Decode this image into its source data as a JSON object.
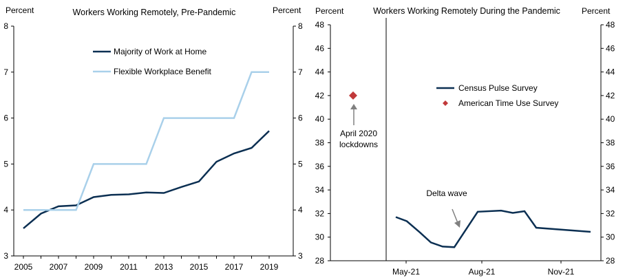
{
  "chart_data": [
    {
      "type": "line",
      "title": "Workers Working Remotely, Pre-Pandemic",
      "ylabel_left": "Percent",
      "ylabel_right": "Percent",
      "ylim": [
        3,
        8
      ],
      "yticks": [
        "3",
        "4",
        "5",
        "6",
        "7",
        "8"
      ],
      "xlim": [
        2005,
        2019
      ],
      "xticks": [
        "2005",
        "2007",
        "2009",
        "2011",
        "2013",
        "2015",
        "2017",
        "2019"
      ],
      "legend_position": "upper-left",
      "series": [
        {
          "name": "Majority of Work at Home",
          "color": "#0b2f52",
          "x": [
            2005,
            2006,
            2007,
            2008,
            2009,
            2010,
            2011,
            2012,
            2013,
            2014,
            2015,
            2016,
            2017,
            2018,
            2019
          ],
          "y": [
            3.6,
            3.92,
            4.08,
            4.1,
            4.28,
            4.33,
            4.34,
            4.38,
            4.37,
            4.5,
            4.62,
            5.05,
            5.23,
            5.35,
            5.72
          ]
        },
        {
          "name": "Flexible Workplace Benefit",
          "color": "#a9d0ea",
          "step": true,
          "x": [
            2005,
            2006,
            2007,
            2008,
            2009,
            2010,
            2011,
            2012,
            2013,
            2014,
            2015,
            2016,
            2017,
            2018,
            2019
          ],
          "y": [
            4,
            4,
            4,
            4,
            5,
            5,
            5,
            5,
            6,
            6,
            6,
            6,
            6,
            7,
            7
          ]
        }
      ]
    },
    {
      "type": "line",
      "title": "Workers Working Remotely During the Pandemic",
      "ylabel_left": "Percent",
      "ylabel_right": "Percent",
      "ylim": [
        28,
        48
      ],
      "yticks": [
        "28",
        "30",
        "32",
        "34",
        "36",
        "38",
        "40",
        "42",
        "44",
        "46",
        "48"
      ],
      "xticks": [
        "May-21",
        "Aug-21",
        "Nov-21"
      ],
      "legend_position": "center-right",
      "series": [
        {
          "name": "Census Pulse Survey",
          "color": "#0b2f52",
          "x": [
            "Apr-21",
            "May-21",
            "Jun-21",
            "Jul-21",
            "Jul-21",
            "Aug-21",
            "Sep-21",
            "Sep-21",
            "Oct-21",
            "Dec-21"
          ],
          "y": [
            31.7,
            31.35,
            29.55,
            29.2,
            29.15,
            32.15,
            32.25,
            32.05,
            32.2,
            30.45
          ]
        },
        {
          "name": "American Time Use Survey",
          "color": "#c1393a",
          "marker": "diamond",
          "x": [
            "Apr-20"
          ],
          "y": [
            42
          ]
        }
      ],
      "annotations": [
        {
          "text_lines": [
            "April 2020",
            "lockdowns"
          ]
        },
        {
          "text": "Delta wave"
        }
      ]
    }
  ]
}
